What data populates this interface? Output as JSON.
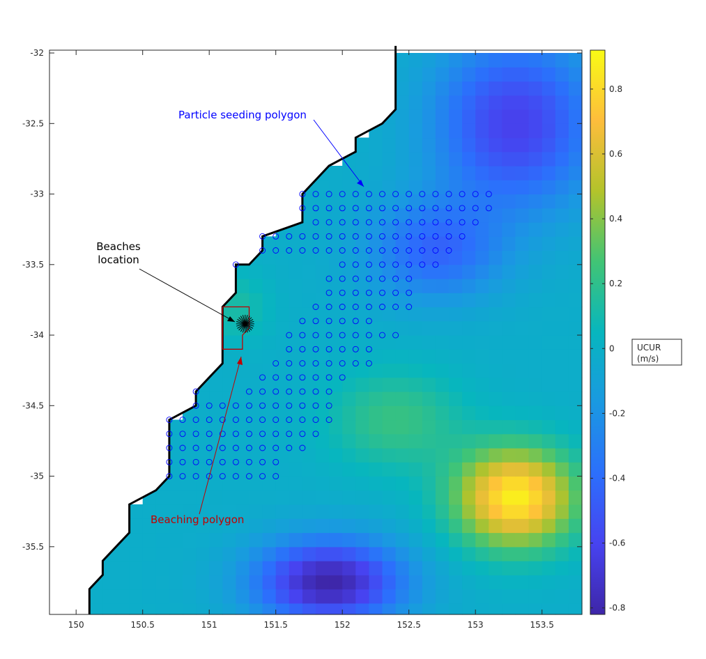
{
  "chart_data": {
    "type": "heatmap",
    "x_ticks": [
      "150",
      "150.5",
      "151",
      "151.5",
      "152",
      "152.5",
      "153",
      "153.5"
    ],
    "y_ticks": [
      "-32",
      "-32.5",
      "-33",
      "-33.5",
      "-34",
      "-34.5",
      "-35",
      "-35.5"
    ],
    "xlim": [
      149.8,
      153.8
    ],
    "ylim": [
      -35.98,
      -31.98
    ],
    "grid": false,
    "colorbar": {
      "label_line1": "UCUR",
      "label_line2": "(m/s)",
      "ticks": [
        "-0.8",
        "-0.6",
        "-0.4",
        "-0.2",
        "0",
        "0.2",
        "0.4",
        "0.6",
        "0.8"
      ],
      "range": [
        -0.82,
        0.92
      ],
      "colormap": "parula"
    },
    "annotations": {
      "seeding": {
        "text": "Particle seeding polygon",
        "color": "#0000ff"
      },
      "beaches": {
        "line1": "Beaches",
        "line2": "location",
        "color": "#000000"
      },
      "beaching": {
        "text": "Beaching polygon",
        "color": "#c00000"
      }
    },
    "coastline": [
      [
        152.4,
        -31.95
      ],
      [
        152.4,
        -32.4
      ],
      [
        152.3,
        -32.5
      ],
      [
        152.1,
        -32.6
      ],
      [
        152.1,
        -32.7
      ],
      [
        151.9,
        -32.8
      ],
      [
        151.8,
        -32.9
      ],
      [
        151.7,
        -33.0
      ],
      [
        151.7,
        -33.2
      ],
      [
        151.4,
        -33.3
      ],
      [
        151.4,
        -33.4
      ],
      [
        151.3,
        -33.5
      ],
      [
        151.2,
        -33.5
      ],
      [
        151.2,
        -33.7
      ],
      [
        151.1,
        -33.8
      ],
      [
        151.1,
        -34.2
      ],
      [
        151.0,
        -34.3
      ],
      [
        150.9,
        -34.4
      ],
      [
        150.9,
        -34.5
      ],
      [
        150.7,
        -34.6
      ],
      [
        150.7,
        -35.0
      ],
      [
        150.6,
        -35.1
      ],
      [
        150.4,
        -35.2
      ],
      [
        150.4,
        -35.4
      ],
      [
        150.3,
        -35.5
      ],
      [
        150.2,
        -35.6
      ],
      [
        150.2,
        -35.7
      ],
      [
        150.1,
        -35.8
      ],
      [
        150.1,
        -35.98
      ]
    ],
    "beaching_polygon": [
      [
        151.1,
        -33.8
      ],
      [
        151.3,
        -33.8
      ],
      [
        151.3,
        -33.95
      ],
      [
        151.25,
        -34.0
      ],
      [
        151.25,
        -34.1
      ],
      [
        151.1,
        -34.1
      ],
      [
        151.1,
        -33.8
      ]
    ],
    "beach_location": [
      151.27,
      -33.92
    ],
    "seed_rows": [
      {
        "lat": -33.0,
        "from": 151.7,
        "to": 153.1
      },
      {
        "lat": -33.1,
        "from": 151.7,
        "to": 153.1
      },
      {
        "lat": -33.2,
        "from": 151.8,
        "to": 153.0
      },
      {
        "lat": -33.3,
        "from": 151.4,
        "to": 152.9
      },
      {
        "lat": -33.4,
        "from": 151.4,
        "to": 152.8
      },
      {
        "lat": -33.5,
        "from": 152.0,
        "to": 152.7
      },
      {
        "lat": -33.6,
        "from": 151.9,
        "to": 152.5
      },
      {
        "lat": -33.7,
        "from": 151.9,
        "to": 152.5
      },
      {
        "lat": -33.8,
        "from": 151.8,
        "to": 152.5
      },
      {
        "lat": -33.9,
        "from": 151.7,
        "to": 152.2
      },
      {
        "lat": -34.0,
        "from": 151.6,
        "to": 152.4
      },
      {
        "lat": -34.1,
        "from": 151.6,
        "to": 152.2
      },
      {
        "lat": -34.2,
        "from": 151.5,
        "to": 152.2
      },
      {
        "lat": -34.3,
        "from": 151.4,
        "to": 152.0
      },
      {
        "lat": -34.4,
        "from": 151.3,
        "to": 151.9
      },
      {
        "lat": -34.5,
        "from": 150.9,
        "to": 151.9
      },
      {
        "lat": -34.6,
        "from": 150.7,
        "to": 151.9
      },
      {
        "lat": -34.7,
        "from": 150.7,
        "to": 151.8
      },
      {
        "lat": -34.8,
        "from": 150.7,
        "to": 151.7
      },
      {
        "lat": -34.9,
        "from": 150.7,
        "to": 151.5
      },
      {
        "lat": -35.0,
        "from": 150.7,
        "to": 151.5
      }
    ],
    "seed_extra": [
      [
        151.2,
        -33.5
      ],
      [
        150.9,
        -34.4
      ]
    ],
    "features": [
      {
        "name": "southern-eddy",
        "lon": 151.9,
        "lat": -35.75,
        "value": -0.8,
        "sx": 0.55,
        "sy": 0.3
      },
      {
        "name": "east-warm-core",
        "lon": 153.3,
        "lat": -35.15,
        "value": 0.9,
        "sx": 0.45,
        "sy": 0.35
      },
      {
        "name": "northeast-low",
        "lon": 153.3,
        "lat": -32.5,
        "value": -0.6,
        "sx": 0.6,
        "sy": 0.6
      },
      {
        "name": "central-low",
        "lon": 152.7,
        "lat": -33.4,
        "value": -0.4,
        "sx": 0.5,
        "sy": 0.35
      },
      {
        "name": "center-high",
        "lon": 152.4,
        "lat": -34.6,
        "value": 0.25,
        "sx": 0.5,
        "sy": 0.35
      },
      {
        "name": "west-high",
        "lon": 151.2,
        "lat": -33.8,
        "value": 0.15,
        "sx": 0.25,
        "sy": 0.25
      }
    ]
  }
}
